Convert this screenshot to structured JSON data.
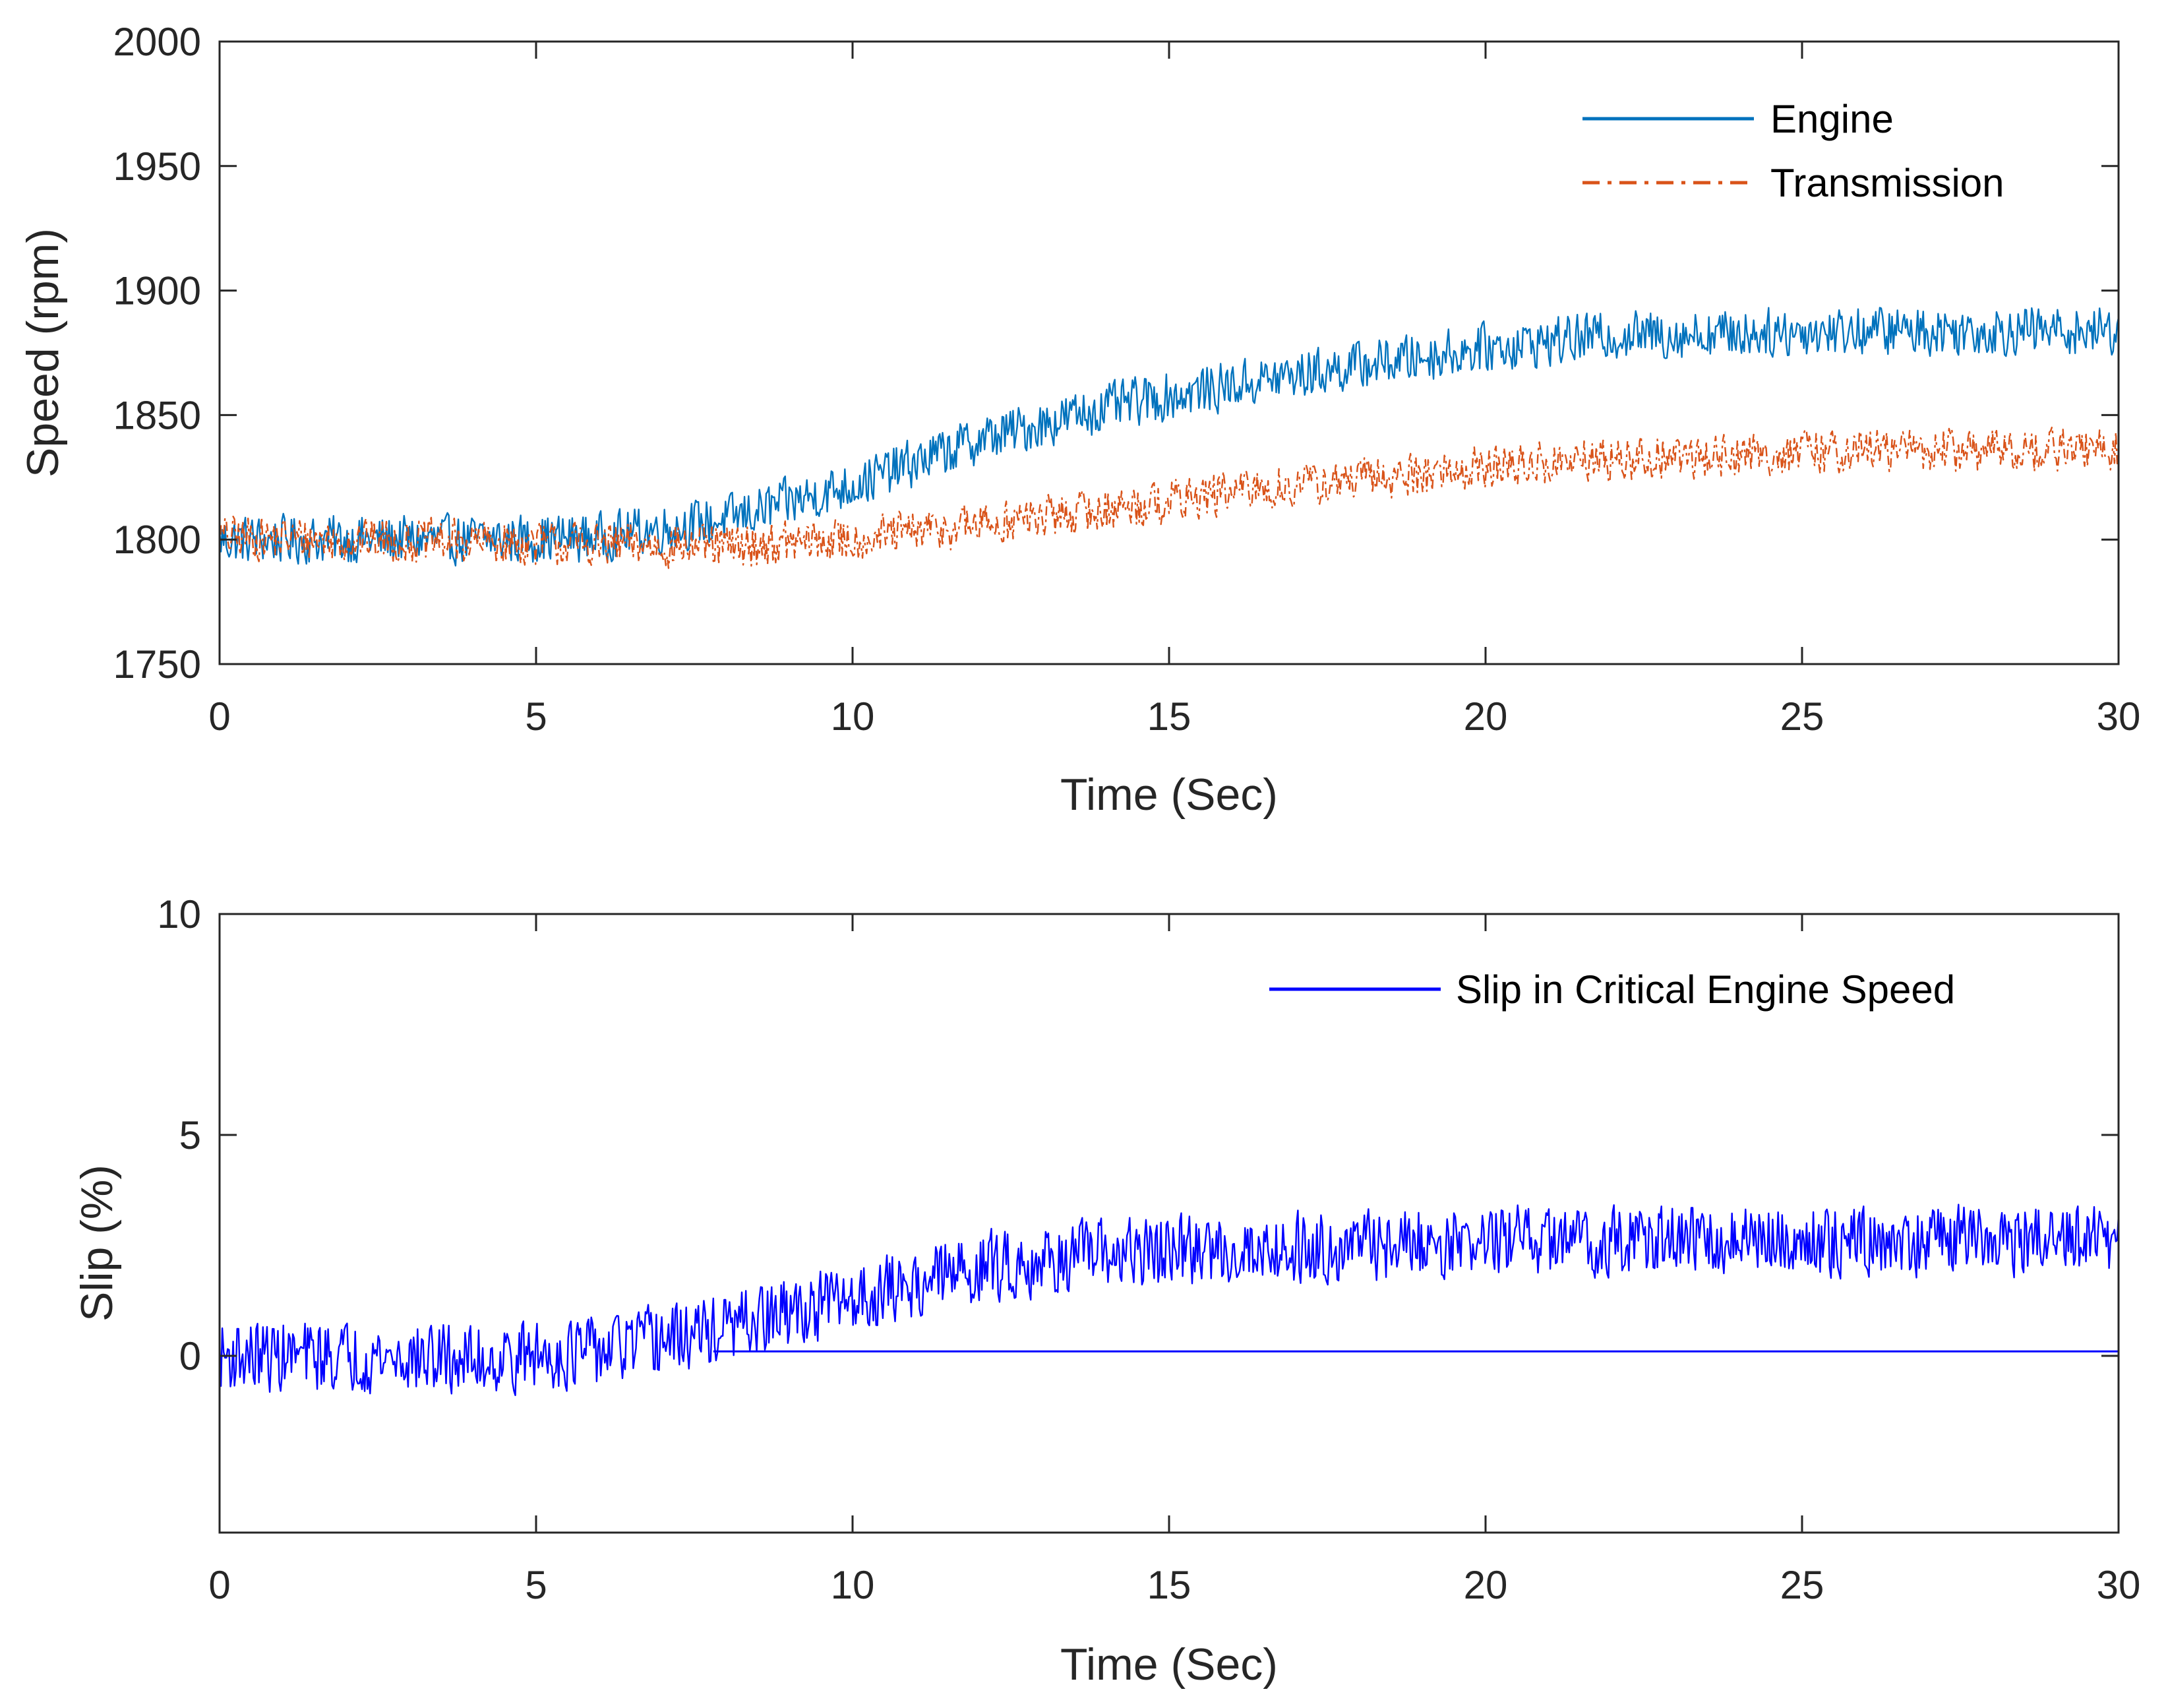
{
  "chart_data": [
    {
      "type": "line",
      "title": "",
      "xlabel": "Time (Sec)",
      "ylabel": "Speed (rpm)",
      "xlim": [
        0,
        30
      ],
      "ylim": [
        1750,
        2000
      ],
      "xticks": [
        0,
        5,
        10,
        15,
        20,
        25,
        30
      ],
      "yticks": [
        1750,
        1800,
        1850,
        1900,
        1950,
        2000
      ],
      "xtick_labels": [
        "0",
        "5",
        "10",
        "15",
        "20",
        "25",
        "30"
      ],
      "ytick_labels": [
        "1750",
        "1800",
        "1850",
        "1900",
        "1950",
        "2000"
      ],
      "grid": false,
      "legend_position": "top-right",
      "series": [
        {
          "name": "Engine",
          "color": "#0072BD",
          "style": "solid",
          "noise": 11,
          "x": [
            0,
            2,
            4,
            6,
            8,
            10,
            12,
            14,
            16,
            18,
            20,
            22,
            24,
            26,
            28,
            30
          ],
          "values": [
            1800,
            1800,
            1800,
            1801,
            1808,
            1822,
            1840,
            1853,
            1862,
            1870,
            1877,
            1882,
            1883,
            1884,
            1884,
            1884
          ]
        },
        {
          "name": "Transmission",
          "color": "#D95319",
          "style": "dashdot",
          "noise": 10,
          "x": [
            0,
            2,
            4,
            6,
            8,
            10,
            12,
            14,
            16,
            18,
            20,
            22,
            24,
            26,
            28,
            30
          ],
          "values": [
            1801,
            1800,
            1799,
            1798,
            1797,
            1800,
            1806,
            1812,
            1819,
            1824,
            1829,
            1832,
            1834,
            1836,
            1836,
            1836
          ]
        }
      ]
    },
    {
      "type": "line",
      "title": "",
      "xlabel": "Time (Sec)",
      "ylabel": "Slip (%)",
      "xlim": [
        0,
        30
      ],
      "ylim": [
        -4,
        10
      ],
      "xticks": [
        0,
        5,
        10,
        15,
        20,
        25,
        30
      ],
      "yticks": [
        0,
        5,
        10
      ],
      "xtick_labels": [
        "0",
        "5",
        "10",
        "15",
        "20",
        "25",
        "30"
      ],
      "ytick_labels": [
        "0",
        "5",
        "10"
      ],
      "grid": false,
      "legend_position": "top-right",
      "series": [
        {
          "name": "Slip in Critical Engine Speed",
          "color": "#0000FF",
          "style": "solid",
          "noise": 0.9,
          "x": [
            0,
            2,
            4,
            6,
            8,
            10,
            12,
            14,
            16,
            18,
            20,
            22,
            24,
            26,
            28,
            30
          ],
          "values": [
            0,
            0,
            -0.1,
            0.1,
            0.6,
            1.3,
            2.0,
            2.3,
            2.4,
            2.5,
            2.6,
            2.6,
            2.6,
            2.6,
            2.6,
            2.6
          ]
        }
      ],
      "reference_line": {
        "name": "zero-baseline",
        "x_from": 7.8,
        "x_to": 30,
        "y": 0.1,
        "color": "#0000FF"
      }
    }
  ]
}
